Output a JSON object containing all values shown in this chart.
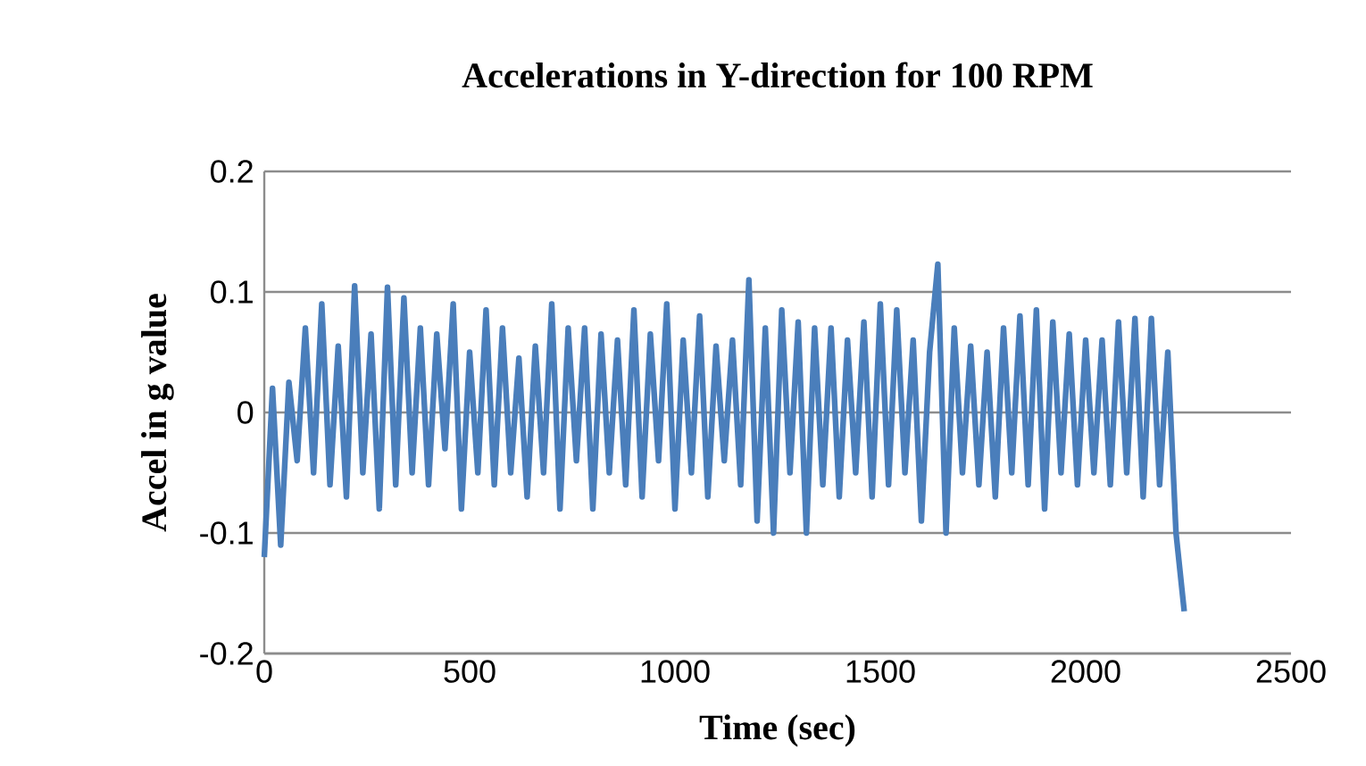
{
  "chart_data": {
    "type": "line",
    "title": "Accelerations in Y-direction for 100 RPM",
    "xlabel": "Time (sec)",
    "ylabel": "Accel in g value",
    "xlim": [
      0,
      2500
    ],
    "xticks": [
      0,
      500,
      1000,
      1500,
      2000,
      2500
    ],
    "ylim": [
      -0.2,
      0.2
    ],
    "yticks": [
      -0.2,
      -0.1,
      0,
      0.1,
      0.2
    ],
    "grid": "y",
    "marker": "none",
    "line_style": "solid",
    "series": [
      {
        "color": "#4a7ebb",
        "x": [
          0,
          20,
          40,
          60,
          80,
          100,
          120,
          140,
          160,
          180,
          200,
          220,
          240,
          260,
          280,
          300,
          320,
          340,
          360,
          380,
          400,
          420,
          440,
          460,
          480,
          500,
          520,
          540,
          560,
          580,
          600,
          620,
          640,
          660,
          680,
          700,
          720,
          740,
          760,
          780,
          800,
          820,
          840,
          860,
          880,
          900,
          920,
          940,
          960,
          980,
          1000,
          1020,
          1040,
          1060,
          1080,
          1100,
          1120,
          1140,
          1160,
          1180,
          1200,
          1220,
          1240,
          1260,
          1280,
          1300,
          1320,
          1340,
          1360,
          1380,
          1400,
          1420,
          1440,
          1460,
          1480,
          1500,
          1520,
          1540,
          1560,
          1580,
          1600,
          1620,
          1640,
          1660,
          1680,
          1700,
          1720,
          1740,
          1760,
          1780,
          1800,
          1820,
          1840,
          1860,
          1880,
          1900,
          1920,
          1940,
          1960,
          1980,
          2000,
          2020,
          2040,
          2060,
          2080,
          2100,
          2120,
          2140,
          2160,
          2180,
          2200,
          2220,
          2240
        ],
        "values": [
          -0.12,
          0.02,
          -0.11,
          0.025,
          -0.04,
          0.07,
          -0.05,
          0.09,
          -0.06,
          0.055,
          -0.07,
          0.105,
          -0.05,
          0.065,
          -0.08,
          0.104,
          -0.06,
          0.095,
          -0.05,
          0.07,
          -0.06,
          0.065,
          -0.03,
          0.09,
          -0.08,
          0.05,
          -0.05,
          0.085,
          -0.06,
          0.07,
          -0.05,
          0.045,
          -0.07,
          0.055,
          -0.05,
          0.09,
          -0.08,
          0.07,
          -0.04,
          0.07,
          -0.08,
          0.065,
          -0.05,
          0.06,
          -0.06,
          0.085,
          -0.07,
          0.065,
          -0.04,
          0.09,
          -0.08,
          0.06,
          -0.05,
          0.08,
          -0.07,
          0.055,
          -0.04,
          0.06,
          -0.06,
          0.11,
          -0.09,
          0.07,
          -0.1,
          0.085,
          -0.05,
          0.075,
          -0.1,
          0.07,
          -0.06,
          0.07,
          -0.07,
          0.06,
          -0.05,
          0.075,
          -0.07,
          0.09,
          -0.06,
          0.085,
          -0.05,
          0.06,
          -0.09,
          0.05,
          0.123,
          -0.1,
          0.07,
          -0.05,
          0.055,
          -0.06,
          0.05,
          -0.07,
          0.07,
          -0.05,
          0.08,
          -0.06,
          0.085,
          -0.08,
          0.075,
          -0.05,
          0.065,
          -0.06,
          0.06,
          -0.05,
          0.06,
          -0.06,
          0.075,
          -0.05,
          0.078,
          -0.07,
          0.078,
          -0.06,
          0.05,
          -0.1,
          -0.165
        ]
      }
    ]
  }
}
